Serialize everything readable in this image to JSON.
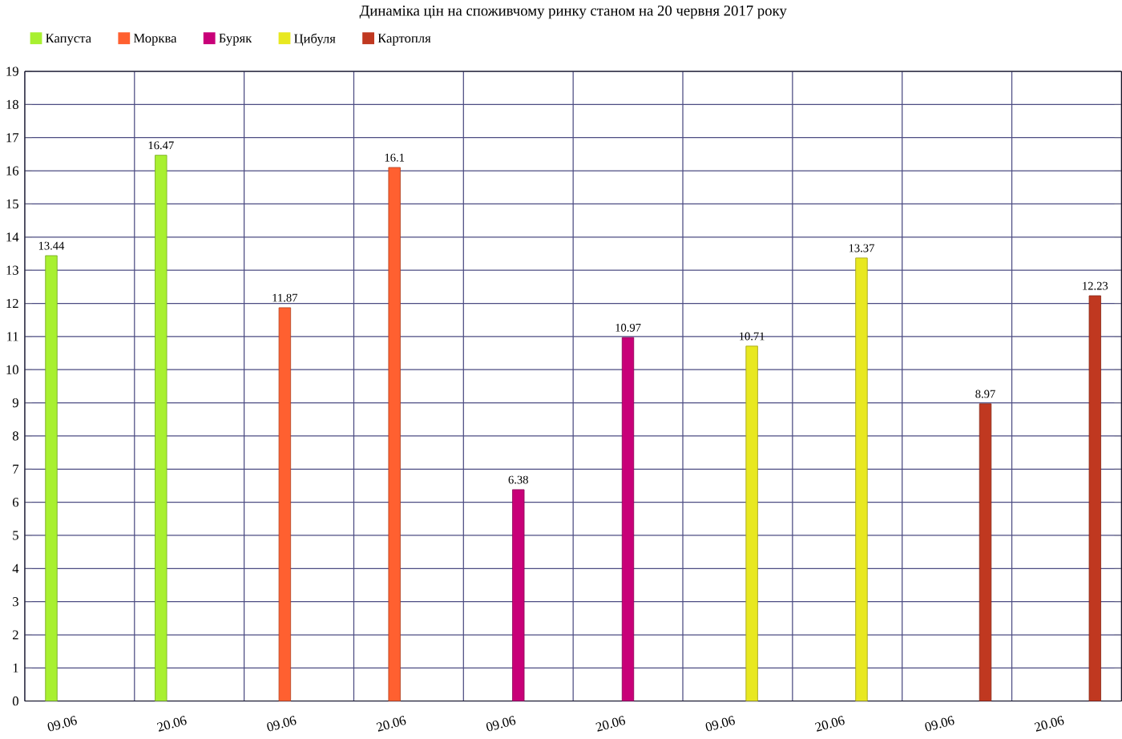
{
  "chart_data": {
    "type": "bar",
    "title": "Динаміка цін на споживчому ринку станом на 20 червня 2017 року",
    "categories": [
      "09.06",
      "20.06",
      "09.06",
      "20.06",
      "09.06",
      "20.06",
      "09.06",
      "20.06",
      "09.06",
      "20.06"
    ],
    "series": [
      {
        "name": "Капуста",
        "color": "#a8f030",
        "values": [
          13.44,
          16.47,
          null,
          null,
          null,
          null,
          null,
          null,
          null,
          null
        ]
      },
      {
        "name": "Морква",
        "color": "#ff6030",
        "values": [
          null,
          null,
          11.87,
          16.1,
          null,
          null,
          null,
          null,
          null,
          null
        ]
      },
      {
        "name": "Буряк",
        "color": "#c80078",
        "values": [
          null,
          null,
          null,
          null,
          6.38,
          10.97,
          null,
          null,
          null,
          null
        ]
      },
      {
        "name": "Цибуля",
        "color": "#e8e820",
        "values": [
          null,
          null,
          null,
          null,
          null,
          null,
          10.71,
          13.37,
          null,
          null
        ]
      },
      {
        "name": "Картопля",
        "color": "#c03820",
        "values": [
          null,
          null,
          null,
          null,
          null,
          null,
          null,
          null,
          8.97,
          12.23
        ]
      }
    ],
    "ylim": [
      0,
      19
    ],
    "yticks": [
      0,
      1,
      2,
      3,
      4,
      5,
      6,
      7,
      8,
      9,
      10,
      11,
      12,
      13,
      14,
      15,
      16,
      17,
      18,
      19
    ],
    "grid": true,
    "legend": "top",
    "data_labels": true
  }
}
